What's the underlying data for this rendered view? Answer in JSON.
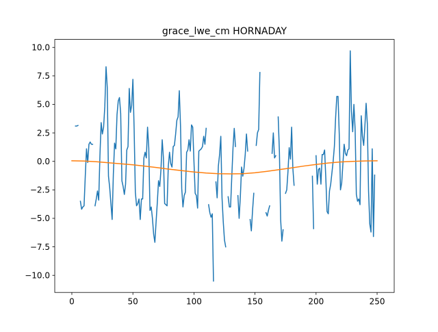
{
  "chart_data": {
    "type": "line",
    "title": "grace_lwe_cm HORNADAY",
    "xlabel": "",
    "ylabel": "",
    "xlim": [
      -14,
      264
    ],
    "ylim": [
      -11.5,
      10.7
    ],
    "xticks": [
      0,
      50,
      100,
      150,
      200,
      250
    ],
    "xtick_labels": [
      "0",
      "50",
      "100",
      "150",
      "200",
      "250"
    ],
    "yticks": [
      -10.0,
      -7.5,
      -5.0,
      -2.5,
      0.0,
      2.5,
      5.0,
      7.5,
      10.0
    ],
    "ytick_labels": [
      "−10.0",
      "−7.5",
      "−5.0",
      "−2.5",
      "0.0",
      "2.5",
      "5.0",
      "7.5",
      "10.0"
    ],
    "grid": false,
    "legend": "none",
    "colors": {
      "series_1": "#1f77b4",
      "series_2": "#ff7f0e",
      "axes": "#000000",
      "background": "#ffffff"
    },
    "series": [
      {
        "values": [
          [
            3,
            3.1
          ],
          [
            4,
            3.1
          ],
          [
            5,
            3.15
          ],
          [
            6,
            null
          ],
          [
            7,
            -3.5
          ],
          [
            8,
            -4.2
          ],
          [
            9,
            -4.0
          ],
          [
            10,
            -3.9
          ],
          [
            11,
            -1.3
          ],
          [
            12,
            1.1
          ],
          [
            13,
            -0.1
          ],
          [
            14,
            1.5
          ],
          [
            15,
            1.7
          ],
          [
            16,
            1.5
          ],
          [
            17,
            1.5
          ],
          [
            18,
            null
          ],
          [
            19,
            -3.9
          ],
          [
            20,
            -3.3
          ],
          [
            21,
            -2.6
          ],
          [
            22,
            -3.4
          ],
          [
            23,
            0.5
          ],
          [
            24,
            3.4
          ],
          [
            25,
            2.4
          ],
          [
            26,
            3.0
          ],
          [
            27,
            4.8
          ],
          [
            28,
            8.3
          ],
          [
            29,
            6.5
          ],
          [
            30,
            -1.3
          ],
          [
            31,
            -2.3
          ],
          [
            32,
            -3.7
          ],
          [
            33,
            -5.1
          ],
          [
            34,
            -1.1
          ],
          [
            35,
            1.6
          ],
          [
            36,
            1.1
          ],
          [
            37,
            4.1
          ],
          [
            38,
            5.3
          ],
          [
            39,
            5.6
          ],
          [
            40,
            4.2
          ],
          [
            41,
            -1.7
          ],
          [
            42,
            -2.2
          ],
          [
            43,
            -2.9
          ],
          [
            44,
            -2.0
          ],
          [
            45,
            1.0
          ],
          [
            46,
            1.3
          ],
          [
            47,
            6.4
          ],
          [
            48,
            4.3
          ],
          [
            49,
            4.9
          ],
          [
            50,
            7.2
          ],
          [
            51,
            2.9
          ],
          [
            52,
            -2.7
          ],
          [
            53,
            -3.9
          ],
          [
            54,
            -3.7
          ],
          [
            55,
            -3.3
          ],
          [
            56,
            -5.1
          ],
          [
            57,
            -3.3
          ],
          [
            58,
            -3.3
          ],
          [
            59,
            0.3
          ],
          [
            60,
            0.8
          ],
          [
            61,
            0.3
          ],
          [
            62,
            3.0
          ],
          [
            63,
            1.2
          ],
          [
            64,
            -4.3
          ],
          [
            65,
            -4.0
          ],
          [
            66,
            -5.0
          ],
          [
            67,
            -6.4
          ],
          [
            68,
            -7.1
          ],
          [
            69,
            -5.3
          ],
          [
            70,
            -3.6
          ],
          [
            71,
            -1.7
          ],
          [
            72,
            -2.2
          ],
          [
            73,
            -0.7
          ],
          [
            74,
            1.9
          ],
          [
            75,
            0.3
          ],
          [
            76,
            -3.7
          ],
          [
            77,
            -3.8
          ],
          [
            78,
            -3.9
          ],
          [
            79,
            -0.4
          ],
          [
            80,
            0.8
          ],
          [
            81,
            -0.2
          ],
          [
            82,
            -0.5
          ],
          [
            83,
            1.3
          ],
          [
            84,
            1.4
          ],
          [
            85,
            2.4
          ],
          [
            86,
            3.6
          ],
          [
            87,
            3.9
          ],
          [
            88,
            6.2
          ],
          [
            89,
            3.1
          ],
          [
            90,
            -2.4
          ],
          [
            91,
            -4.0
          ],
          [
            92,
            -3.0
          ],
          [
            93,
            -2.7
          ],
          [
            94,
            0.8
          ],
          [
            95,
            1.0
          ],
          [
            96,
            1.9
          ],
          [
            97,
            0.9
          ],
          [
            98,
            3.2
          ],
          [
            99,
            3.0
          ],
          [
            100,
            0.0
          ],
          [
            101,
            -2.8
          ],
          [
            102,
            -3.0
          ],
          [
            103,
            -4.1
          ],
          [
            104,
            0.9
          ],
          [
            105,
            1.0
          ],
          [
            106,
            1.1
          ],
          [
            107,
            1.3
          ],
          [
            108,
            2.2
          ],
          [
            109,
            1.5
          ],
          [
            110,
            2.9
          ],
          [
            111,
            null
          ],
          [
            112,
            -3.8
          ],
          [
            113,
            -4.5
          ],
          [
            114,
            -4.9
          ],
          [
            115,
            -4.6
          ],
          [
            116,
            -10.5
          ],
          [
            117,
            null
          ],
          [
            118,
            -1.8
          ],
          [
            119,
            -3.2
          ],
          [
            120,
            -0.4
          ],
          [
            121,
            0.6
          ],
          [
            122,
            2.2
          ],
          [
            123,
            -3.2
          ],
          [
            124,
            -5.3
          ],
          [
            125,
            -6.9
          ],
          [
            126,
            -7.5
          ],
          [
            127,
            null
          ],
          [
            128,
            -3.1
          ],
          [
            129,
            -4.0
          ],
          [
            130,
            -4.0
          ],
          [
            131,
            -1.3
          ],
          [
            132,
            1.2
          ],
          [
            133,
            2.9
          ],
          [
            134,
            1.3
          ],
          [
            135,
            null
          ],
          [
            136,
            -3.0
          ],
          [
            137,
            -5.0
          ],
          [
            138,
            -3.1
          ],
          [
            139,
            -0.5
          ],
          [
            140,
            -1.3
          ],
          [
            141,
            -0.6
          ],
          [
            142,
            0.6
          ],
          [
            143,
            2.4
          ],
          [
            144,
            0.9
          ],
          [
            145,
            null
          ],
          [
            146,
            -5.1
          ],
          [
            147,
            -6.1
          ],
          [
            148,
            -4.3
          ],
          [
            149,
            -2.8
          ],
          [
            150,
            null
          ],
          [
            151,
            1.4
          ],
          [
            152,
            2.5
          ],
          [
            153,
            2.8
          ],
          [
            154,
            7.8
          ],
          [
            155,
            null
          ],
          [
            159,
            -4.5
          ],
          [
            160,
            -4.8
          ],
          [
            161,
            -4.3
          ],
          [
            162,
            -3.9
          ],
          [
            163,
            null
          ],
          [
            164,
            0.7
          ],
          [
            165,
            2.5
          ],
          [
            166,
            0.3
          ],
          [
            167,
            0.5
          ],
          [
            168,
            null
          ],
          [
            169,
            3.9
          ],
          [
            170,
            0.8
          ],
          [
            171,
            -5.1
          ],
          [
            172,
            -7.0
          ],
          [
            173,
            -6.0
          ],
          [
            174,
            null
          ],
          [
            175,
            -2.8
          ],
          [
            176,
            -2.5
          ],
          [
            177,
            -0.9
          ],
          [
            178,
            1.2
          ],
          [
            179,
            0.2
          ],
          [
            180,
            3.0
          ],
          [
            181,
            -0.6
          ],
          [
            182,
            -2.1
          ],
          [
            183,
            null
          ],
          [
            197,
            -1.3
          ],
          [
            198,
            -5.9
          ],
          [
            199,
            null
          ],
          [
            200,
            0.5
          ],
          [
            201,
            -2.0
          ],
          [
            202,
            -0.7
          ],
          [
            203,
            -0.6
          ],
          [
            204,
            -2.0
          ],
          [
            205,
            0.6
          ],
          [
            206,
            0.6
          ],
          [
            207,
            1.0
          ],
          [
            208,
            -1.5
          ],
          [
            209,
            -4.4
          ],
          [
            210,
            -4.6
          ],
          [
            211,
            -2.6
          ],
          [
            212,
            -2.0
          ],
          [
            213,
            -1.0
          ],
          [
            214,
            0.0
          ],
          [
            215,
            1.3
          ],
          [
            216,
            3.8
          ],
          [
            217,
            5.7
          ],
          [
            218,
            5.7
          ],
          [
            219,
            2.4
          ],
          [
            220,
            -2.5
          ],
          [
            221,
            -1.9
          ],
          [
            222,
            -0.2
          ],
          [
            223,
            1.5
          ],
          [
            224,
            0.7
          ],
          [
            225,
            0.5
          ],
          [
            226,
            1.0
          ],
          [
            227,
            1.1
          ],
          [
            228,
            9.7
          ],
          [
            229,
            4.4
          ],
          [
            230,
            2.6
          ],
          [
            231,
            5.0
          ],
          [
            232,
            2.8
          ],
          [
            233,
            -2.9
          ],
          [
            234,
            -3.5
          ],
          [
            235,
            -3.3
          ],
          [
            236,
            -3.8
          ],
          [
            237,
            4.0
          ],
          [
            238,
            2.2
          ],
          [
            239,
            1.4
          ],
          [
            240,
            3.1
          ],
          [
            241,
            5.1
          ],
          [
            242,
            3.3
          ],
          [
            243,
            -2.6
          ],
          [
            244,
            -5.5
          ],
          [
            245,
            -6.2
          ],
          [
            246,
            1.1
          ],
          [
            247,
            -6.6
          ],
          [
            248,
            -1.2
          ]
        ]
      },
      {
        "values": [
          [
            0,
            0.05
          ],
          [
            10,
            0.03
          ],
          [
            20,
            -0.03
          ],
          [
            30,
            -0.12
          ],
          [
            40,
            -0.21
          ],
          [
            50,
            -0.3
          ],
          [
            60,
            -0.42
          ],
          [
            70,
            -0.55
          ],
          [
            80,
            -0.69
          ],
          [
            90,
            -0.81
          ],
          [
            100,
            -0.93
          ],
          [
            110,
            -1.02
          ],
          [
            120,
            -1.08
          ],
          [
            130,
            -1.1
          ],
          [
            140,
            -1.08
          ],
          [
            150,
            -1.0
          ],
          [
            160,
            -0.87
          ],
          [
            170,
            -0.72
          ],
          [
            180,
            -0.57
          ],
          [
            190,
            -0.41
          ],
          [
            200,
            -0.27
          ],
          [
            210,
            -0.14
          ],
          [
            220,
            -0.05
          ],
          [
            230,
            0.0
          ],
          [
            240,
            0.04
          ],
          [
            250,
            0.05
          ]
        ]
      }
    ]
  }
}
